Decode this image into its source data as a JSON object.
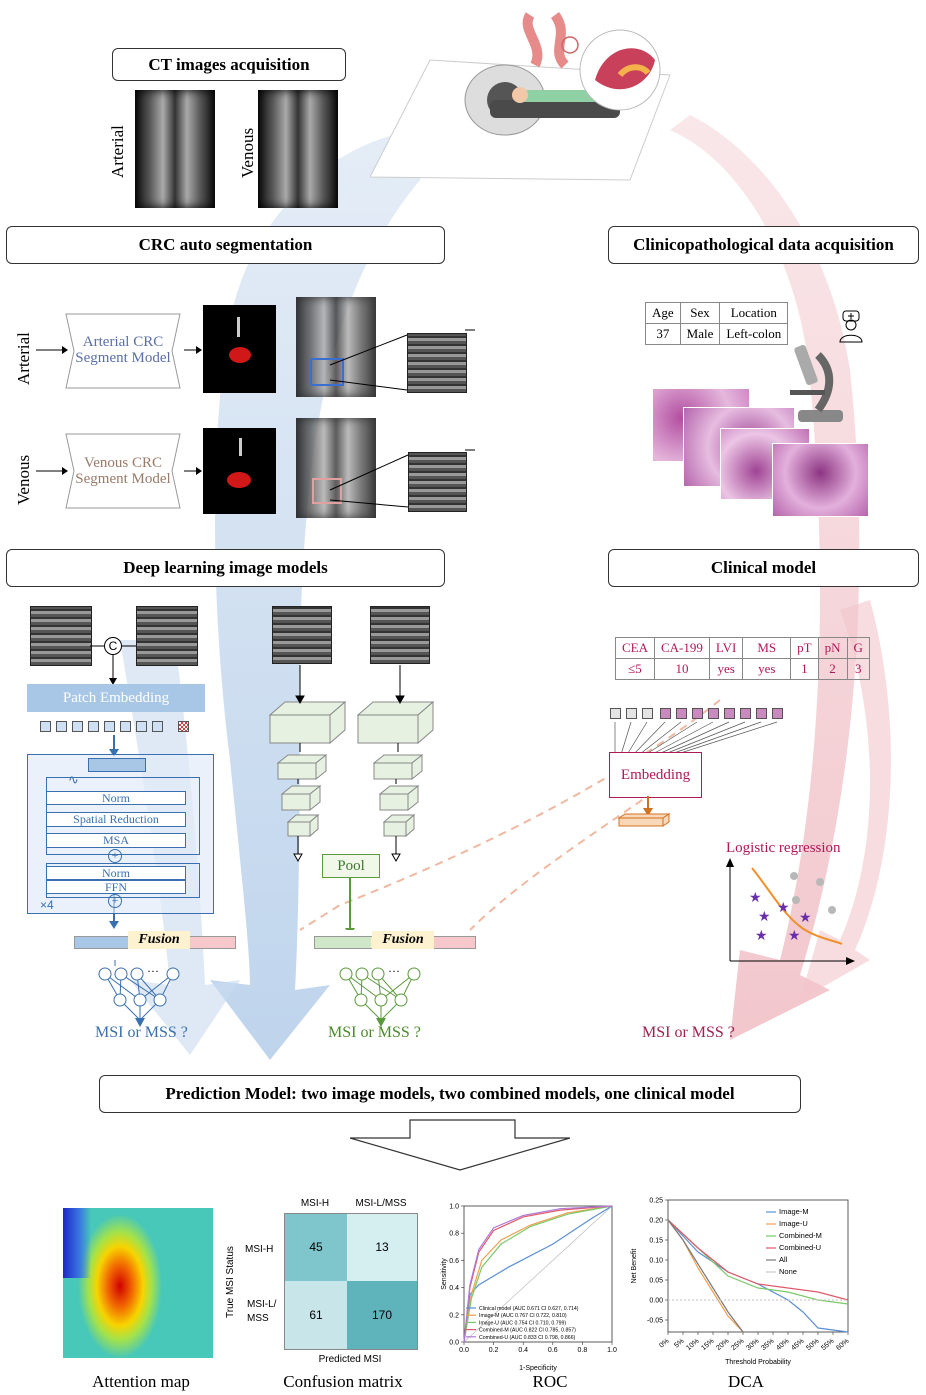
{
  "headers": {
    "ct_acq": "CT images acquisition",
    "seg": "CRC auto segmentation",
    "clin_acq": "Clinicopathological data acquisition",
    "dl": "Deep learning image models",
    "clin_model": "Clinical model",
    "prediction": "Prediction Model: two image models, two combined models, one clinical model"
  },
  "phases": {
    "arterial": "Arterial",
    "venous": "Venous"
  },
  "seg_models": {
    "arterial_l1": "Arterial CRC",
    "arterial_l2": "Segment Model",
    "venous_l1": "Venous CRC",
    "venous_l2": "Segment Model"
  },
  "patient_table": {
    "headers": [
      "Age",
      "Sex",
      "Location"
    ],
    "values": [
      "37",
      "Male",
      "Left-colon"
    ]
  },
  "clinical_table": {
    "headers": [
      "CEA",
      "CA-199",
      "LVI",
      "MS",
      "pT",
      "pN",
      "G"
    ],
    "values": [
      "≤5",
      "10",
      "yes",
      "yes",
      "1",
      "2",
      "3"
    ]
  },
  "transformer": {
    "concat": "C",
    "patch_embedding": "Patch Embedding",
    "norm1": "Norm",
    "spatial_reduction": "Spatial Reduction",
    "msa": "MSA",
    "norm2": "Norm",
    "ffn": "FFN",
    "repeat": "×4"
  },
  "fusion": "Fusion",
  "pool": "Pool",
  "embedding": "Embedding",
  "logistic": "Logistic regression",
  "outputs": {
    "tf": "MSI or MSS ?",
    "cnn": "MSI or MSS ?",
    "clin": "MSI or MSS ?"
  },
  "captions": {
    "attention": "Attention map",
    "confusion": "Confusion matrix",
    "roc": "ROC",
    "dca": "DCA"
  },
  "confusion": {
    "col_headers": [
      "MSI-H",
      "MSI-L/MSS"
    ],
    "row_headers": [
      "MSI-H",
      "MSI-L/\nMSS"
    ],
    "values": [
      [
        45,
        13
      ],
      [
        61,
        170
      ]
    ],
    "ylabel": "True MSI Status",
    "xlabel": "Predicted MSI"
  },
  "chart_data": [
    {
      "type": "line",
      "title": "",
      "xlabel": "1-Specificity",
      "ylabel": "Sensitivity",
      "xlim": [
        0,
        1
      ],
      "ylim": [
        0,
        1
      ],
      "xticks": [
        "0.0",
        "0.2",
        "0.4",
        "0.6",
        "0.8",
        "1.0"
      ],
      "yticks": [
        "0.0",
        "0.2",
        "0.4",
        "0.6",
        "0.8",
        "1.0"
      ],
      "legend_position": "bottom-right",
      "series": [
        {
          "name": "Clinical model (AUC 0.671 CI 0.627, 0.714)",
          "color": "#5b8fd6",
          "x": [
            0,
            0.04,
            0.1,
            0.3,
            0.6,
            0.85,
            1
          ],
          "y": [
            0,
            0.35,
            0.42,
            0.55,
            0.72,
            0.9,
            1
          ]
        },
        {
          "name": "Image-M (AUC 0.767 CI 0.722, 0.810)",
          "color": "#f0a050",
          "x": [
            0,
            0.05,
            0.12,
            0.25,
            0.45,
            0.7,
            1
          ],
          "y": [
            0,
            0.35,
            0.6,
            0.75,
            0.86,
            0.95,
            1
          ]
        },
        {
          "name": "Image-U (AUC 0.754 CI 0.710, 0.799)",
          "color": "#7cc96b",
          "x": [
            0,
            0.05,
            0.12,
            0.25,
            0.45,
            0.7,
            1
          ],
          "y": [
            0,
            0.32,
            0.55,
            0.72,
            0.85,
            0.94,
            1
          ]
        },
        {
          "name": "Combined-M (AUC 0.822 CI 0.785, 0.857)",
          "color": "#e05a6a",
          "x": [
            0,
            0.04,
            0.1,
            0.2,
            0.4,
            0.65,
            1
          ],
          "y": [
            0,
            0.4,
            0.66,
            0.82,
            0.92,
            0.97,
            1
          ]
        },
        {
          "name": "Combined-U (AUC 0.833 CI 0.798, 0.866)",
          "color": "#b07ad8",
          "x": [
            0,
            0.04,
            0.1,
            0.2,
            0.4,
            0.65,
            1
          ],
          "y": [
            0,
            0.42,
            0.68,
            0.84,
            0.93,
            0.98,
            1
          ]
        }
      ]
    },
    {
      "type": "line",
      "title": "",
      "xlabel": "Threshold Probability",
      "ylabel": "Net Benefit",
      "xlim": [
        0,
        0.6
      ],
      "ylim": [
        -0.08,
        0.25
      ],
      "xticks": [
        "0%",
        "5%",
        "10%",
        "15%",
        "20%",
        "25%",
        "30%",
        "35%",
        "40%",
        "45%",
        "50%",
        "55%",
        "60%"
      ],
      "yticks": [
        "0.25",
        "0.20",
        "0.15",
        "0.10",
        "0.05",
        "0.00",
        "-0.05"
      ],
      "legend_position": "top-right",
      "series": [
        {
          "name": "Image-M",
          "color": "#5b8fd6",
          "x": [
            0,
            0.05,
            0.1,
            0.2,
            0.3,
            0.4,
            0.45,
            0.5,
            0.6
          ],
          "y": [
            0.2,
            0.16,
            0.12,
            0.07,
            0.04,
            0.0,
            -0.03,
            -0.07,
            -0.08
          ]
        },
        {
          "name": "Image-U",
          "color": "#f0a050",
          "x": [
            0,
            0.05,
            0.1,
            0.15,
            0.2,
            0.25
          ],
          "y": [
            0.2,
            0.15,
            0.08,
            0.02,
            -0.04,
            -0.08
          ]
        },
        {
          "name": "Combined-M",
          "color": "#7cc96b",
          "x": [
            0,
            0.1,
            0.2,
            0.3,
            0.4,
            0.5,
            0.6
          ],
          "y": [
            0.2,
            0.13,
            0.06,
            0.03,
            0.02,
            0.0,
            -0.01
          ]
        },
        {
          "name": "Combined-U",
          "color": "#e05a6a",
          "x": [
            0,
            0.1,
            0.2,
            0.3,
            0.4,
            0.5,
            0.6
          ],
          "y": [
            0.2,
            0.13,
            0.07,
            0.04,
            0.03,
            0.02,
            0.0
          ]
        },
        {
          "name": "All",
          "color": "#7a7a7a",
          "x": [
            0,
            0.05,
            0.1,
            0.15,
            0.2,
            0.25
          ],
          "y": [
            0.2,
            0.15,
            0.09,
            0.03,
            -0.03,
            -0.08
          ]
        },
        {
          "name": "None",
          "color": "#cccccc",
          "x": [
            0,
            0.6
          ],
          "y": [
            0,
            0
          ]
        }
      ]
    }
  ]
}
